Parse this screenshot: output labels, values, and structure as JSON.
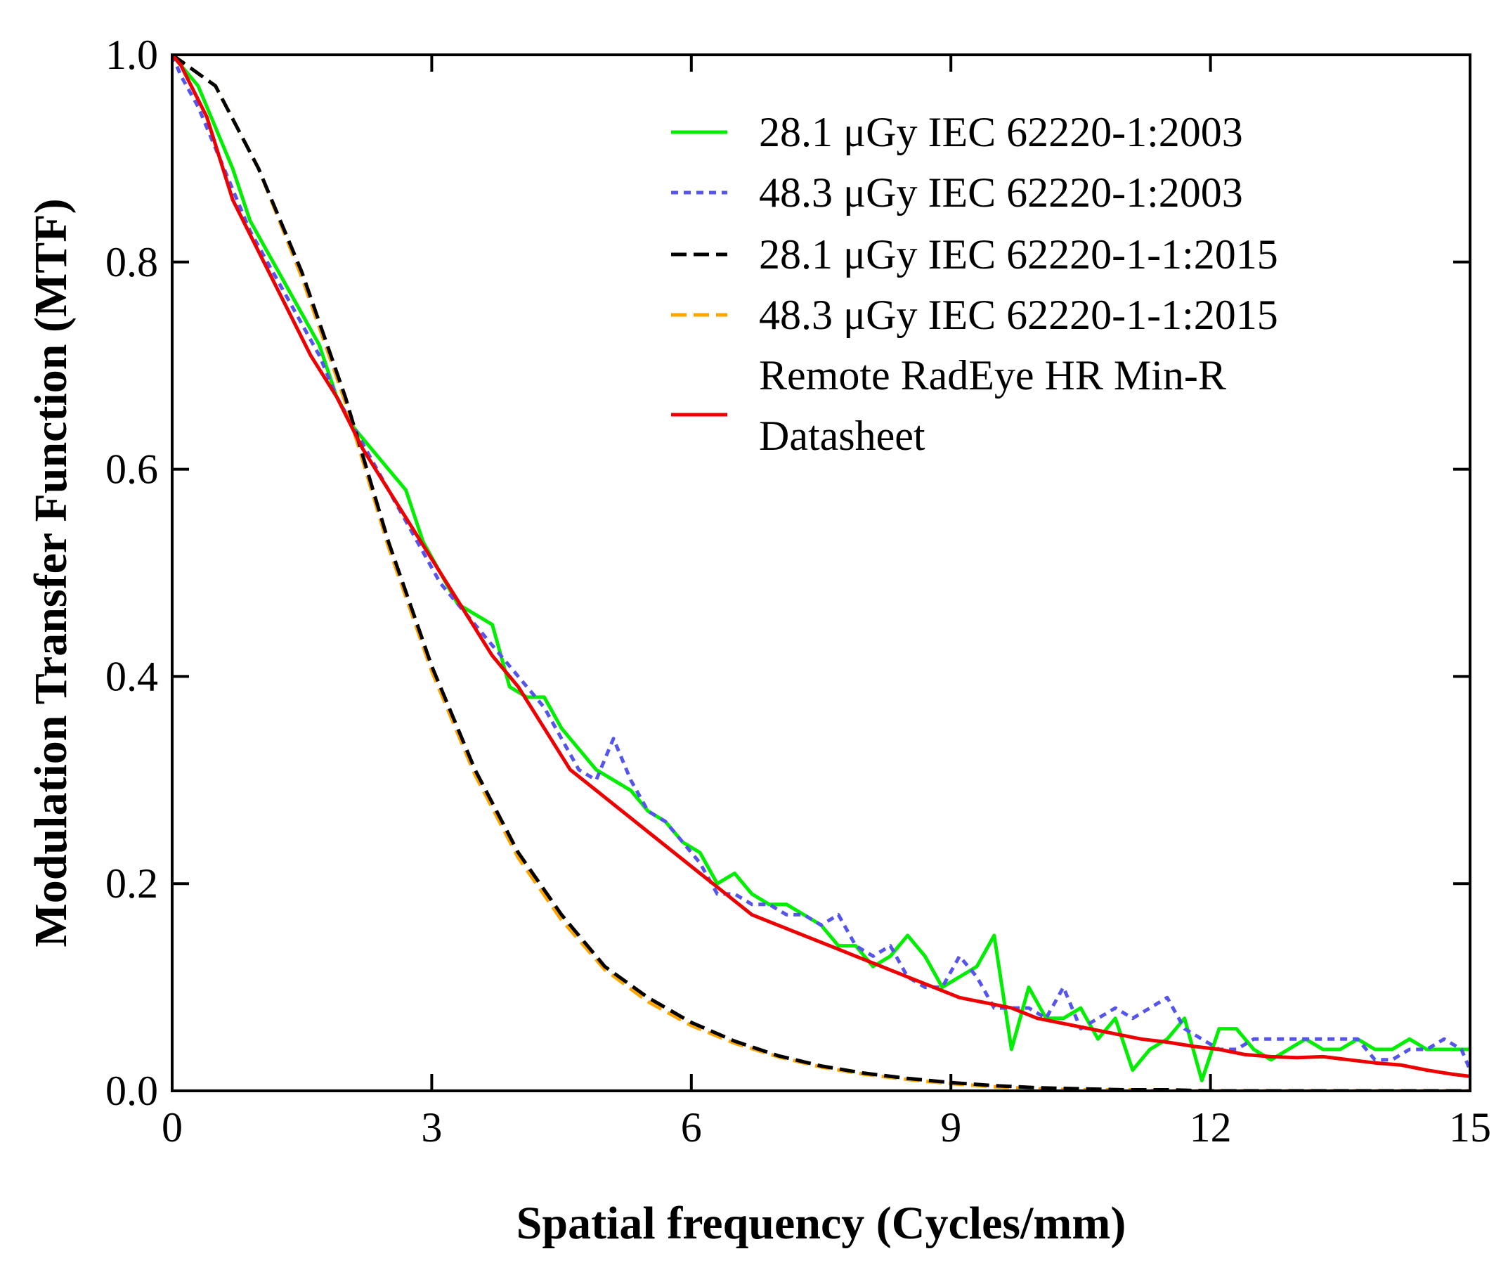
{
  "chart_data": {
    "type": "line",
    "title": "",
    "xlabel": "Spatial frequency (Cycles/mm)",
    "ylabel": "Modulation Transfer Function (MTF)",
    "xlim": [
      0,
      15
    ],
    "ylim": [
      0.0,
      1.0
    ],
    "xticks": [
      0,
      3,
      6,
      9,
      12,
      15
    ],
    "xtick_labels": [
      "0",
      "3",
      "6",
      "9",
      "12",
      "15"
    ],
    "yticks": [
      0.0,
      0.2,
      0.4,
      0.6,
      0.8,
      1.0
    ],
    "ytick_labels": [
      "0.0",
      "0.2",
      "0.4",
      "0.6",
      "0.8",
      "1.0"
    ],
    "grid": false,
    "legend_position": "top-right",
    "series": [
      {
        "name": "28.1 μGy IEC 62220-1:2003",
        "color": "#00ee00",
        "dash": "solid",
        "x": [
          0,
          0.1,
          0.3,
          0.5,
          0.7,
          0.9,
          1.1,
          1.3,
          1.5,
          1.7,
          1.9,
          2.1,
          2.3,
          2.5,
          2.7,
          2.9,
          3.1,
          3.3,
          3.5,
          3.7,
          3.9,
          4.1,
          4.3,
          4.5,
          4.7,
          4.9,
          5.1,
          5.3,
          5.5,
          5.7,
          5.9,
          6.1,
          6.3,
          6.5,
          6.7,
          6.9,
          7.1,
          7.3,
          7.5,
          7.7,
          7.9,
          8.1,
          8.3,
          8.5,
          8.7,
          8.9,
          9.1,
          9.3,
          9.5,
          9.7,
          9.9,
          10.1,
          10.3,
          10.5,
          10.7,
          10.9,
          11.1,
          11.3,
          11.5,
          11.7,
          11.9,
          12.1,
          12.3,
          12.5,
          12.7,
          12.9,
          13.1,
          13.3,
          13.5,
          13.7,
          13.9,
          14.1,
          14.3,
          14.5,
          14.7,
          14.9,
          15.0
        ],
        "values": [
          1.0,
          0.99,
          0.97,
          0.93,
          0.89,
          0.84,
          0.81,
          0.78,
          0.75,
          0.72,
          0.67,
          0.64,
          0.62,
          0.6,
          0.58,
          0.53,
          0.5,
          0.47,
          0.46,
          0.45,
          0.39,
          0.38,
          0.38,
          0.35,
          0.33,
          0.31,
          0.3,
          0.29,
          0.27,
          0.26,
          0.24,
          0.23,
          0.2,
          0.21,
          0.19,
          0.18,
          0.18,
          0.17,
          0.16,
          0.14,
          0.14,
          0.12,
          0.13,
          0.15,
          0.13,
          0.1,
          0.11,
          0.12,
          0.15,
          0.04,
          0.1,
          0.07,
          0.07,
          0.08,
          0.05,
          0.07,
          0.02,
          0.04,
          0.05,
          0.07,
          0.01,
          0.06,
          0.06,
          0.04,
          0.03,
          0.04,
          0.05,
          0.04,
          0.04,
          0.05,
          0.04,
          0.04,
          0.05,
          0.04,
          0.04,
          0.04,
          0.04
        ]
      },
      {
        "name": "48.3 μGy IEC 62220-1:2003",
        "color": "#5555ee",
        "dash": "dotted",
        "x": [
          0,
          0.1,
          0.3,
          0.5,
          0.7,
          0.9,
          1.1,
          1.3,
          1.5,
          1.7,
          1.9,
          2.1,
          2.3,
          2.5,
          2.7,
          2.9,
          3.1,
          3.3,
          3.5,
          3.7,
          3.9,
          4.1,
          4.3,
          4.5,
          4.7,
          4.9,
          5.1,
          5.3,
          5.5,
          5.7,
          5.9,
          6.1,
          6.3,
          6.5,
          6.7,
          6.9,
          7.1,
          7.3,
          7.5,
          7.7,
          7.9,
          8.1,
          8.3,
          8.5,
          8.7,
          8.9,
          9.1,
          9.3,
          9.5,
          9.7,
          9.9,
          10.1,
          10.3,
          10.5,
          10.7,
          10.9,
          11.1,
          11.3,
          11.5,
          11.7,
          11.9,
          12.1,
          12.3,
          12.5,
          12.7,
          12.9,
          13.1,
          13.3,
          13.5,
          13.7,
          13.9,
          14.1,
          14.3,
          14.5,
          14.7,
          14.9,
          15.0
        ],
        "values": [
          1.0,
          0.98,
          0.95,
          0.91,
          0.87,
          0.83,
          0.8,
          0.77,
          0.74,
          0.71,
          0.67,
          0.64,
          0.61,
          0.58,
          0.55,
          0.52,
          0.49,
          0.47,
          0.45,
          0.43,
          0.41,
          0.39,
          0.37,
          0.34,
          0.31,
          0.3,
          0.34,
          0.3,
          0.27,
          0.26,
          0.24,
          0.22,
          0.19,
          0.19,
          0.18,
          0.18,
          0.17,
          0.17,
          0.16,
          0.17,
          0.14,
          0.13,
          0.14,
          0.11,
          0.1,
          0.1,
          0.13,
          0.11,
          0.08,
          0.08,
          0.08,
          0.07,
          0.1,
          0.06,
          0.07,
          0.08,
          0.07,
          0.08,
          0.09,
          0.06,
          0.05,
          0.04,
          0.04,
          0.05,
          0.05,
          0.05,
          0.05,
          0.05,
          0.05,
          0.05,
          0.03,
          0.03,
          0.04,
          0.04,
          0.05,
          0.04,
          0.02
        ]
      },
      {
        "name": "28.1 μGy IEC 62220-1-1:2015",
        "color": "#000000",
        "dash": "dashed",
        "x": [
          0,
          0.5,
          1.0,
          1.5,
          2.0,
          2.5,
          3.0,
          3.5,
          4.0,
          4.5,
          5.0,
          5.5,
          6.0,
          6.5,
          7.0,
          7.5,
          8.0,
          8.5,
          9.0,
          9.5,
          10.0,
          10.5,
          11.0,
          11.5,
          12.0,
          12.5,
          13.0,
          13.5,
          14.0,
          14.5,
          15.0
        ],
        "values": [
          1.0,
          0.97,
          0.89,
          0.79,
          0.67,
          0.53,
          0.41,
          0.31,
          0.23,
          0.17,
          0.12,
          0.09,
          0.066,
          0.048,
          0.034,
          0.024,
          0.017,
          0.012,
          0.008,
          0.005,
          0.003,
          0.002,
          0.001,
          0.001,
          0.0,
          0.0,
          0.0,
          0.0,
          0.0,
          0.0,
          0.0
        ]
      },
      {
        "name": "48.3 μGy IEC 62220-1-1:2015",
        "color": "#ffa500",
        "dash": "dashed",
        "x": [
          0,
          0.5,
          1.0,
          1.5,
          2.0,
          2.5,
          3.0,
          3.5,
          4.0,
          4.5,
          5.0,
          5.5,
          6.0,
          6.5,
          7.0,
          7.5,
          8.0,
          8.5,
          9.0,
          9.5,
          10.0,
          10.5,
          11.0,
          11.5,
          12.0,
          12.5,
          13.0,
          13.5,
          14.0,
          14.5,
          15.0
        ],
        "values": [
          1.0,
          0.97,
          0.89,
          0.785,
          0.665,
          0.525,
          0.405,
          0.305,
          0.225,
          0.165,
          0.117,
          0.086,
          0.063,
          0.046,
          0.033,
          0.023,
          0.016,
          0.011,
          0.007,
          0.004,
          0.002,
          0.001,
          0.001,
          0.0,
          0.0,
          0.0,
          0.0,
          0.0,
          0.0,
          0.0,
          0.0
        ]
      },
      {
        "name": "Remote RadEye HR Min-R Datasheet",
        "color": "#ee0000",
        "dash": "solid",
        "x": [
          0,
          0.1,
          0.4,
          0.7,
          1.0,
          1.3,
          1.6,
          1.9,
          2.2,
          2.5,
          2.8,
          3.1,
          3.4,
          3.7,
          4.0,
          4.3,
          4.6,
          4.9,
          5.2,
          5.5,
          5.8,
          6.1,
          6.4,
          6.7,
          7.0,
          7.3,
          7.6,
          7.9,
          8.2,
          8.5,
          8.8,
          9.1,
          9.4,
          9.7,
          10.0,
          10.3,
          10.6,
          10.9,
          11.2,
          11.5,
          11.8,
          12.1,
          12.4,
          12.7,
          13.0,
          13.3,
          13.6,
          13.9,
          14.2,
          14.5,
          14.8,
          15.0
        ],
        "values": [
          1.0,
          0.99,
          0.94,
          0.86,
          0.81,
          0.76,
          0.71,
          0.67,
          0.62,
          0.58,
          0.54,
          0.5,
          0.46,
          0.42,
          0.39,
          0.35,
          0.31,
          0.29,
          0.27,
          0.25,
          0.23,
          0.21,
          0.19,
          0.17,
          0.16,
          0.15,
          0.14,
          0.13,
          0.12,
          0.11,
          0.1,
          0.09,
          0.085,
          0.08,
          0.07,
          0.065,
          0.06,
          0.055,
          0.05,
          0.047,
          0.043,
          0.04,
          0.035,
          0.033,
          0.032,
          0.033,
          0.03,
          0.027,
          0.025,
          0.02,
          0.016,
          0.014
        ]
      }
    ],
    "legend_lines": [
      [
        "28.1 μGy IEC 62220-1:2003"
      ],
      [
        "48.3 μGy IEC 62220-1:2003"
      ],
      [
        "28.1 μGy IEC 62220-1-1:2015"
      ],
      [
        "48.3 μGy IEC 62220-1-1:2015"
      ],
      [
        "Remote RadEye HR Min-R",
        "Datasheet"
      ]
    ]
  }
}
